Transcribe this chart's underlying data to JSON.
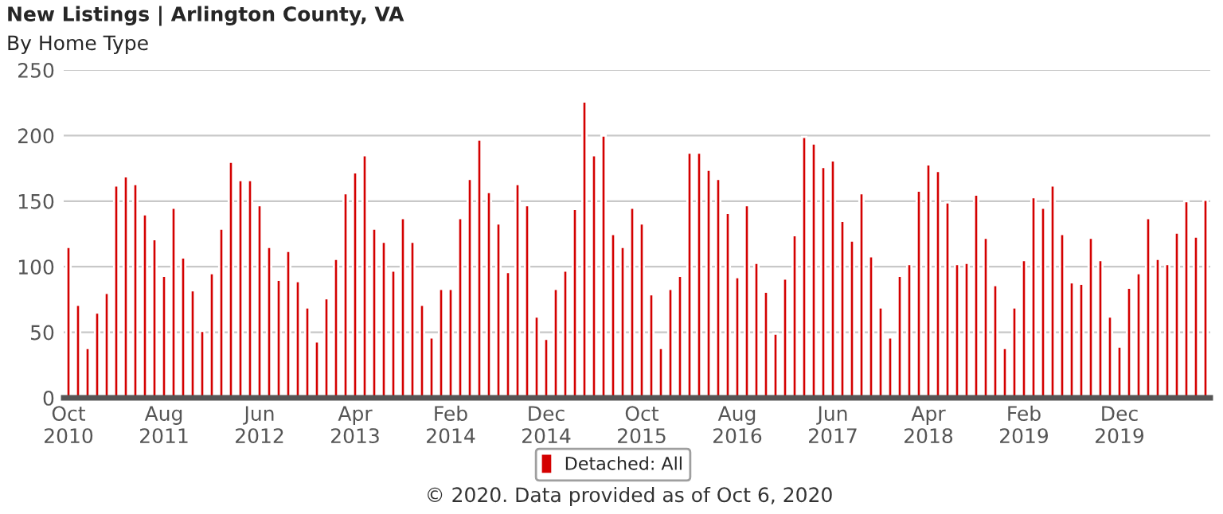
{
  "chart_data": {
    "type": "bar",
    "title": "New Listings | Arlington County, VA",
    "subtitle": "By Home Type",
    "categories": [
      "Oct\n2010",
      null,
      null,
      null,
      null,
      null,
      null,
      null,
      null,
      null,
      "Aug\n2011",
      null,
      null,
      null,
      null,
      null,
      null,
      null,
      null,
      null,
      "Jun\n2012",
      null,
      null,
      null,
      null,
      null,
      null,
      null,
      null,
      null,
      "Apr\n2013",
      null,
      null,
      null,
      null,
      null,
      null,
      null,
      null,
      null,
      "Feb\n2014",
      null,
      null,
      null,
      null,
      null,
      null,
      null,
      null,
      null,
      "Dec\n2014",
      null,
      null,
      null,
      null,
      null,
      null,
      null,
      null,
      null,
      "Oct\n2015",
      null,
      null,
      null,
      null,
      null,
      null,
      null,
      null,
      null,
      "Aug\n2016",
      null,
      null,
      null,
      null,
      null,
      null,
      null,
      null,
      null,
      "Jun\n2017",
      null,
      null,
      null,
      null,
      null,
      null,
      null,
      null,
      null,
      "Apr\n2018",
      null,
      null,
      null,
      null,
      null,
      null,
      null,
      null,
      null,
      "Feb\n2019",
      null,
      null,
      null,
      null,
      null,
      null,
      null,
      null,
      null,
      "Dec\n2019",
      null,
      null,
      null,
      null,
      null,
      null,
      null,
      null,
      null
    ],
    "series": [
      {
        "name": "Detached: All",
        "color": "#d40000",
        "values": [
          115,
          71,
          38,
          65,
          80,
          162,
          169,
          163,
          140,
          121,
          93,
          145,
          107,
          82,
          51,
          95,
          129,
          180,
          166,
          166,
          147,
          115,
          90,
          112,
          89,
          69,
          43,
          76,
          106,
          156,
          172,
          185,
          129,
          119,
          97,
          137,
          119,
          71,
          46,
          83,
          83,
          137,
          167,
          197,
          157,
          133,
          96,
          163,
          147,
          62,
          45,
          83,
          97,
          144,
          226,
          185,
          200,
          125,
          115,
          145,
          133,
          79,
          38,
          83,
          93,
          187,
          187,
          174,
          167,
          141,
          92,
          147,
          103,
          81,
          49,
          91,
          124,
          199,
          194,
          176,
          181,
          135,
          120,
          156,
          108,
          69,
          46,
          93,
          102,
          158,
          178,
          173,
          149,
          102,
          103,
          155,
          122,
          86,
          38,
          69,
          105,
          153,
          145,
          162,
          125,
          88,
          87,
          122,
          105,
          62,
          39,
          84,
          95,
          137,
          106,
          102,
          126,
          150,
          123,
          151
        ]
      }
    ],
    "ylim": [
      0,
      250
    ],
    "yticks": [
      0,
      50,
      100,
      150,
      200,
      250
    ],
    "grid": "y",
    "legend": "bottom",
    "annotations": [
      "© 2020. Data provided as of Oct 6, 2020"
    ]
  }
}
